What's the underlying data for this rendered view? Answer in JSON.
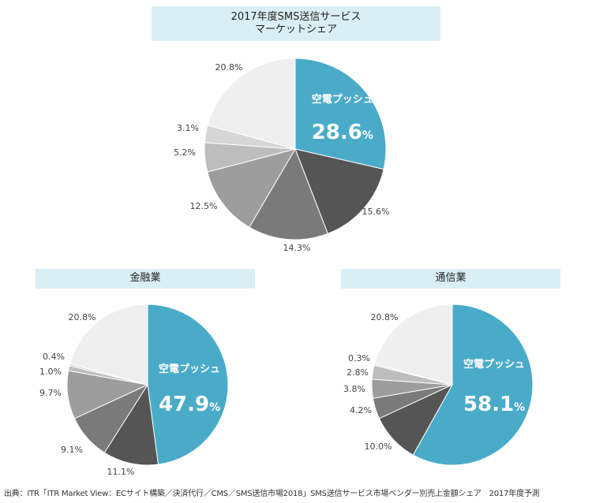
{
  "chart_data": [
    {
      "type": "pie",
      "title_lines": [
        "2017年度SMS送信サービス",
        "マーケットシェア"
      ],
      "highlight_label": "空電プッシュ",
      "slices": [
        {
          "label": "空電プッシュ",
          "value": 28.6,
          "display": "28.6",
          "unit": "%"
        },
        {
          "value": 15.6,
          "display": "15.6%"
        },
        {
          "value": 14.3,
          "display": "14.3%"
        },
        {
          "value": 12.5,
          "display": "12.5%"
        },
        {
          "value": 5.2,
          "display": "5.2%"
        },
        {
          "value": 3.1,
          "display": "3.1%"
        },
        {
          "value": 20.8,
          "display": "20.8%"
        }
      ]
    },
    {
      "type": "pie",
      "title_lines": [
        "金融業"
      ],
      "highlight_label": "空電プッシュ",
      "slices": [
        {
          "label": "空電プッシュ",
          "value": 47.9,
          "display": "47.9",
          "unit": "%"
        },
        {
          "value": 11.1,
          "display": "11.1%"
        },
        {
          "value": 9.1,
          "display": "9.1%"
        },
        {
          "value": 9.7,
          "display": "9.7%"
        },
        {
          "value": 1.0,
          "display": "1.0%"
        },
        {
          "value": 0.4,
          "display": "0.4%"
        },
        {
          "value": 20.8,
          "display": "20.8%"
        }
      ]
    },
    {
      "type": "pie",
      "title_lines": [
        "通信業"
      ],
      "highlight_label": "空電プッシュ",
      "slices": [
        {
          "label": "空電プッシュ",
          "value": 58.1,
          "display": "58.1",
          "unit": "%"
        },
        {
          "value": 10.0,
          "display": "10.0%"
        },
        {
          "value": 4.2,
          "display": "4.2%"
        },
        {
          "value": 3.8,
          "display": "3.8%"
        },
        {
          "value": 2.8,
          "display": "2.8%"
        },
        {
          "value": 0.3,
          "display": "0.3%"
        },
        {
          "value": 20.8,
          "display": "20.8%"
        }
      ]
    }
  ],
  "slice_colors": [
    "#4aabc9",
    "#555555",
    "#7a7a7a",
    "#9d9d9d",
    "#bdbdbd",
    "#d6d6d6",
    "#efefef"
  ],
  "source": "出典：ITR「ITR Market View：ECサイト構築／決済代行／CMS／SMS送信市場2018」SMS送信サービス市場ベンダー別売上金額シェア　2017年度予測"
}
